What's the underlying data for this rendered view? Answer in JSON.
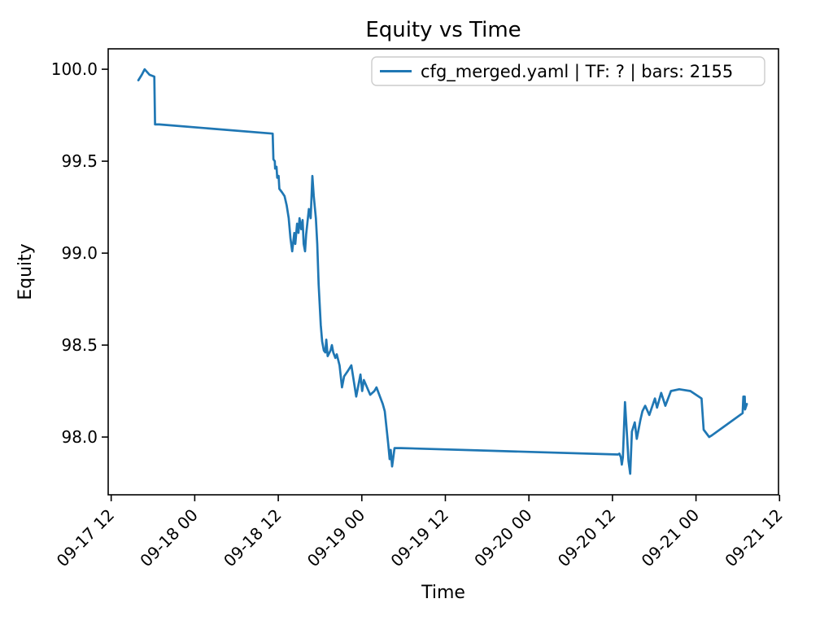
{
  "figure": {
    "title": "Equity vs Time",
    "xlabel": "Time",
    "ylabel": "Equity"
  },
  "legend": {
    "label": "cfg_merged.yaml | TF: ? | bars: 2155",
    "line_color": "#1f77b4",
    "edge_color": "#cccccc",
    "background": "#ffffff"
  },
  "colors": {
    "series_line": "#1f77b4",
    "spine": "#000000",
    "text": "#000000",
    "figure_background": "#ffffff"
  },
  "chart_data": {
    "type": "line",
    "title": "Equity vs Time",
    "xlabel": "Time",
    "ylabel": "Equity",
    "grid": false,
    "legend_position": "upper right",
    "x_unit": "hours since 09-17 12:00",
    "xlim": [
      -0.43,
      95.85
    ],
    "ylim": [
      97.686,
      100.111
    ],
    "y_ticks": [
      {
        "v": 98.0,
        "label": "98.0"
      },
      {
        "v": 98.5,
        "label": "98.5"
      },
      {
        "v": 99.0,
        "label": "99.0"
      },
      {
        "v": 99.5,
        "label": "99.5"
      },
      {
        "v": 100.0,
        "label": "100.0"
      }
    ],
    "x_ticks": [
      {
        "t": 0,
        "label": "09-17 12"
      },
      {
        "t": 12,
        "label": "09-18 00"
      },
      {
        "t": 24,
        "label": "09-18 12"
      },
      {
        "t": 36,
        "label": "09-19 00"
      },
      {
        "t": 48,
        "label": "09-19 12"
      },
      {
        "t": 60,
        "label": "09-20 00"
      },
      {
        "t": 72,
        "label": "09-20 12"
      },
      {
        "t": 84,
        "label": "09-21 00"
      },
      {
        "t": 96,
        "label": "09-21 12"
      }
    ],
    "series": [
      {
        "name": "cfg_merged.yaml | TF: ? | bars: 2155",
        "color": "#1f77b4",
        "points": [
          [
            3.9,
            99.94
          ],
          [
            4.4,
            99.97
          ],
          [
            4.8,
            100.0
          ],
          [
            5.5,
            99.97
          ],
          [
            6.2,
            99.96
          ],
          [
            6.3,
            99.7
          ],
          [
            6.9,
            99.7
          ],
          [
            23.2,
            99.65
          ],
          [
            23.3,
            99.51
          ],
          [
            23.5,
            99.5
          ],
          [
            23.55,
            99.46
          ],
          [
            23.75,
            99.47
          ],
          [
            23.85,
            99.41
          ],
          [
            24.05,
            99.42
          ],
          [
            24.15,
            99.35
          ],
          [
            24.55,
            99.33
          ],
          [
            24.9,
            99.31
          ],
          [
            25.2,
            99.26
          ],
          [
            25.5,
            99.19
          ],
          [
            25.75,
            99.08
          ],
          [
            26.0,
            99.01
          ],
          [
            26.3,
            99.11
          ],
          [
            26.45,
            99.05
          ],
          [
            26.7,
            99.16
          ],
          [
            26.9,
            99.11
          ],
          [
            27.05,
            99.19
          ],
          [
            27.3,
            99.13
          ],
          [
            27.5,
            99.18
          ],
          [
            27.65,
            99.05
          ],
          [
            27.85,
            99.01
          ],
          [
            28.0,
            99.1
          ],
          [
            28.4,
            99.24
          ],
          [
            28.65,
            99.19
          ],
          [
            28.9,
            99.42
          ],
          [
            29.1,
            99.31
          ],
          [
            29.4,
            99.19
          ],
          [
            29.6,
            99.05
          ],
          [
            29.8,
            98.83
          ],
          [
            30.1,
            98.61
          ],
          [
            30.3,
            98.52
          ],
          [
            30.55,
            98.47
          ],
          [
            30.75,
            98.46
          ],
          [
            30.9,
            98.53
          ],
          [
            31.1,
            98.44
          ],
          [
            31.5,
            98.47
          ],
          [
            31.7,
            98.5
          ],
          [
            31.9,
            98.46
          ],
          [
            32.2,
            98.43
          ],
          [
            32.4,
            98.45
          ],
          [
            32.8,
            98.39
          ],
          [
            33.15,
            98.27
          ],
          [
            33.45,
            98.33
          ],
          [
            34.0,
            98.36
          ],
          [
            34.5,
            98.39
          ],
          [
            35.2,
            98.22
          ],
          [
            35.8,
            98.34
          ],
          [
            36.05,
            98.25
          ],
          [
            36.3,
            98.31
          ],
          [
            37.2,
            98.23
          ],
          [
            37.8,
            98.25
          ],
          [
            38.1,
            98.27
          ],
          [
            39.0,
            98.18
          ],
          [
            39.3,
            98.14
          ],
          [
            39.8,
            97.96
          ],
          [
            40.0,
            97.88
          ],
          [
            40.15,
            97.93
          ],
          [
            40.35,
            97.84
          ],
          [
            40.7,
            97.94
          ],
          [
            41.6,
            97.94
          ],
          [
            55.0,
            97.925
          ],
          [
            72.8,
            97.905
          ],
          [
            73.0,
            97.91
          ],
          [
            73.2,
            97.89
          ],
          [
            73.35,
            97.85
          ],
          [
            73.5,
            97.89
          ],
          [
            73.8,
            98.19
          ],
          [
            74.1,
            98.0
          ],
          [
            74.3,
            97.87
          ],
          [
            74.55,
            97.8
          ],
          [
            74.8,
            98.03
          ],
          [
            75.2,
            98.08
          ],
          [
            75.5,
            97.99
          ],
          [
            76.0,
            98.09
          ],
          [
            76.3,
            98.14
          ],
          [
            76.7,
            98.17
          ],
          [
            77.3,
            98.12
          ],
          [
            78.1,
            98.21
          ],
          [
            78.4,
            98.16
          ],
          [
            79.0,
            98.24
          ],
          [
            79.6,
            98.17
          ],
          [
            80.4,
            98.25
          ],
          [
            81.6,
            98.26
          ],
          [
            83.2,
            98.25
          ],
          [
            84.8,
            98.21
          ],
          [
            85.1,
            98.04
          ],
          [
            85.9,
            98.0
          ],
          [
            86.3,
            98.01
          ],
          [
            90.7,
            98.13
          ],
          [
            90.8,
            98.22
          ],
          [
            91.0,
            98.22
          ],
          [
            91.05,
            98.15
          ],
          [
            91.3,
            98.18
          ]
        ]
      }
    ]
  }
}
